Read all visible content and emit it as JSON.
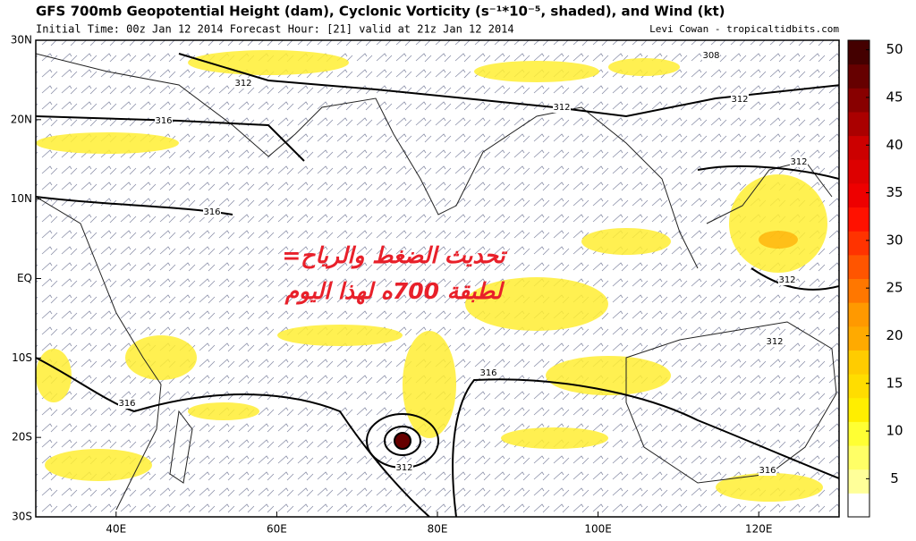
{
  "header": {
    "title": "GFS 700mb Geopotential Height (dam), Cyclonic Vorticity (s⁻¹*10⁻⁵, shaded), and Wind (kt)",
    "subtitle": "Initial Time: 00z Jan 12 2014 Forecast Hour: [21] valid at 21z Jan 12 2014",
    "credit": "Levi Cowan - tropicaltidbits.com"
  },
  "map": {
    "lonlim": [
      30,
      130
    ],
    "latlim": [
      -30,
      30
    ],
    "lonticks": [
      {
        "value": 40,
        "label": "40E"
      },
      {
        "value": 60,
        "label": "60E"
      },
      {
        "value": 80,
        "label": "80E"
      },
      {
        "value": 100,
        "label": "100E"
      },
      {
        "value": 120,
        "label": "120E"
      }
    ],
    "latticks": [
      {
        "value": 30,
        "label": "30N"
      },
      {
        "value": 20,
        "label": "20N"
      },
      {
        "value": 10,
        "label": "10N"
      },
      {
        "value": 0,
        "label": "EQ"
      },
      {
        "value": -10,
        "label": "10S"
      },
      {
        "value": -20,
        "label": "20S"
      },
      {
        "value": -30,
        "label": "30S"
      }
    ],
    "contour_labels": [
      "312",
      "312",
      "308",
      "312",
      "312",
      "316",
      "316",
      "312",
      "312",
      "316",
      "316",
      "312",
      "316"
    ]
  },
  "annotation": {
    "lines": [
      "تحديث الضغط والرياح=",
      "لطبقة 700ه لهذا اليوم"
    ]
  },
  "colorbar": {
    "lim": [
      1,
      51
    ],
    "ticks": [
      5,
      10,
      15,
      20,
      25,
      30,
      35,
      40,
      45,
      50
    ],
    "colors": [
      "#ffffff",
      "#ffff99",
      "#ffff66",
      "#ffff33",
      "#ffee00",
      "#ffdd00",
      "#ffcc00",
      "#ffaa00",
      "#ff9900",
      "#ff7700",
      "#ff5500",
      "#ff3300",
      "#ff1100",
      "#ee0000",
      "#dd0000",
      "#cc0000",
      "#aa0000",
      "#880000",
      "#660000",
      "#440000"
    ]
  }
}
